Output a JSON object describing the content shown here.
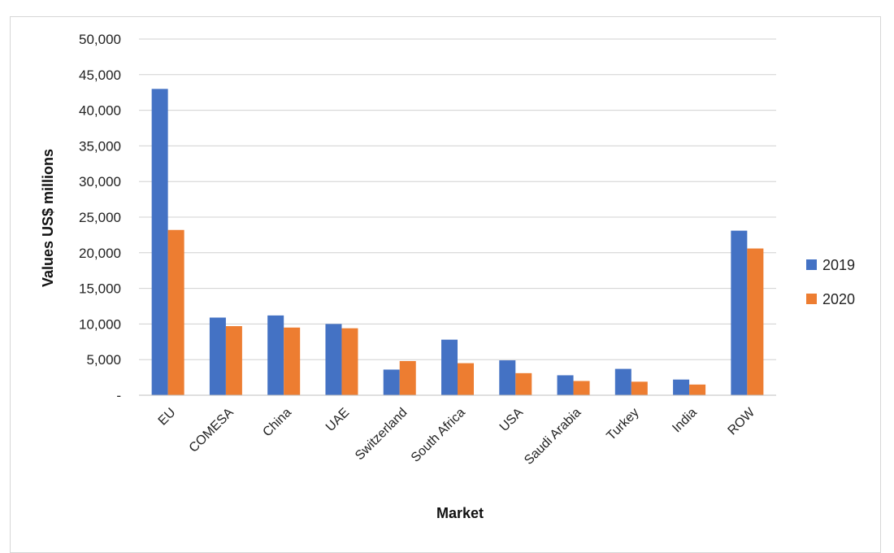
{
  "chart_data": {
    "type": "bar",
    "title": "",
    "xlabel": "Market",
    "ylabel": "Values US$ millions",
    "ylim": [
      0,
      50000
    ],
    "yticks": [
      0,
      5000,
      10000,
      15000,
      20000,
      25000,
      30000,
      35000,
      40000,
      45000,
      50000
    ],
    "ytick_labels": [
      "-",
      "5,000",
      "10,000",
      "15,000",
      "20,000",
      "25,000",
      "30,000",
      "35,000",
      "40,000",
      "45,000",
      "50,000"
    ],
    "grid": true,
    "legend_position": "right",
    "categories": [
      "EU",
      "COMESA",
      "China",
      "UAE",
      "Switzerland",
      "South Africa",
      "USA",
      "Saudi Arabia",
      "Turkey",
      "India",
      "ROW"
    ],
    "series": [
      {
        "name": "2019",
        "color": "#4472c4",
        "values": [
          43000,
          10900,
          11200,
          10000,
          3600,
          7800,
          4900,
          2800,
          3700,
          2200,
          23100
        ]
      },
      {
        "name": "2020",
        "color": "#ed7d31",
        "values": [
          23200,
          9700,
          9500,
          9400,
          4800,
          4500,
          3100,
          2000,
          1900,
          1500,
          20600
        ]
      }
    ]
  }
}
